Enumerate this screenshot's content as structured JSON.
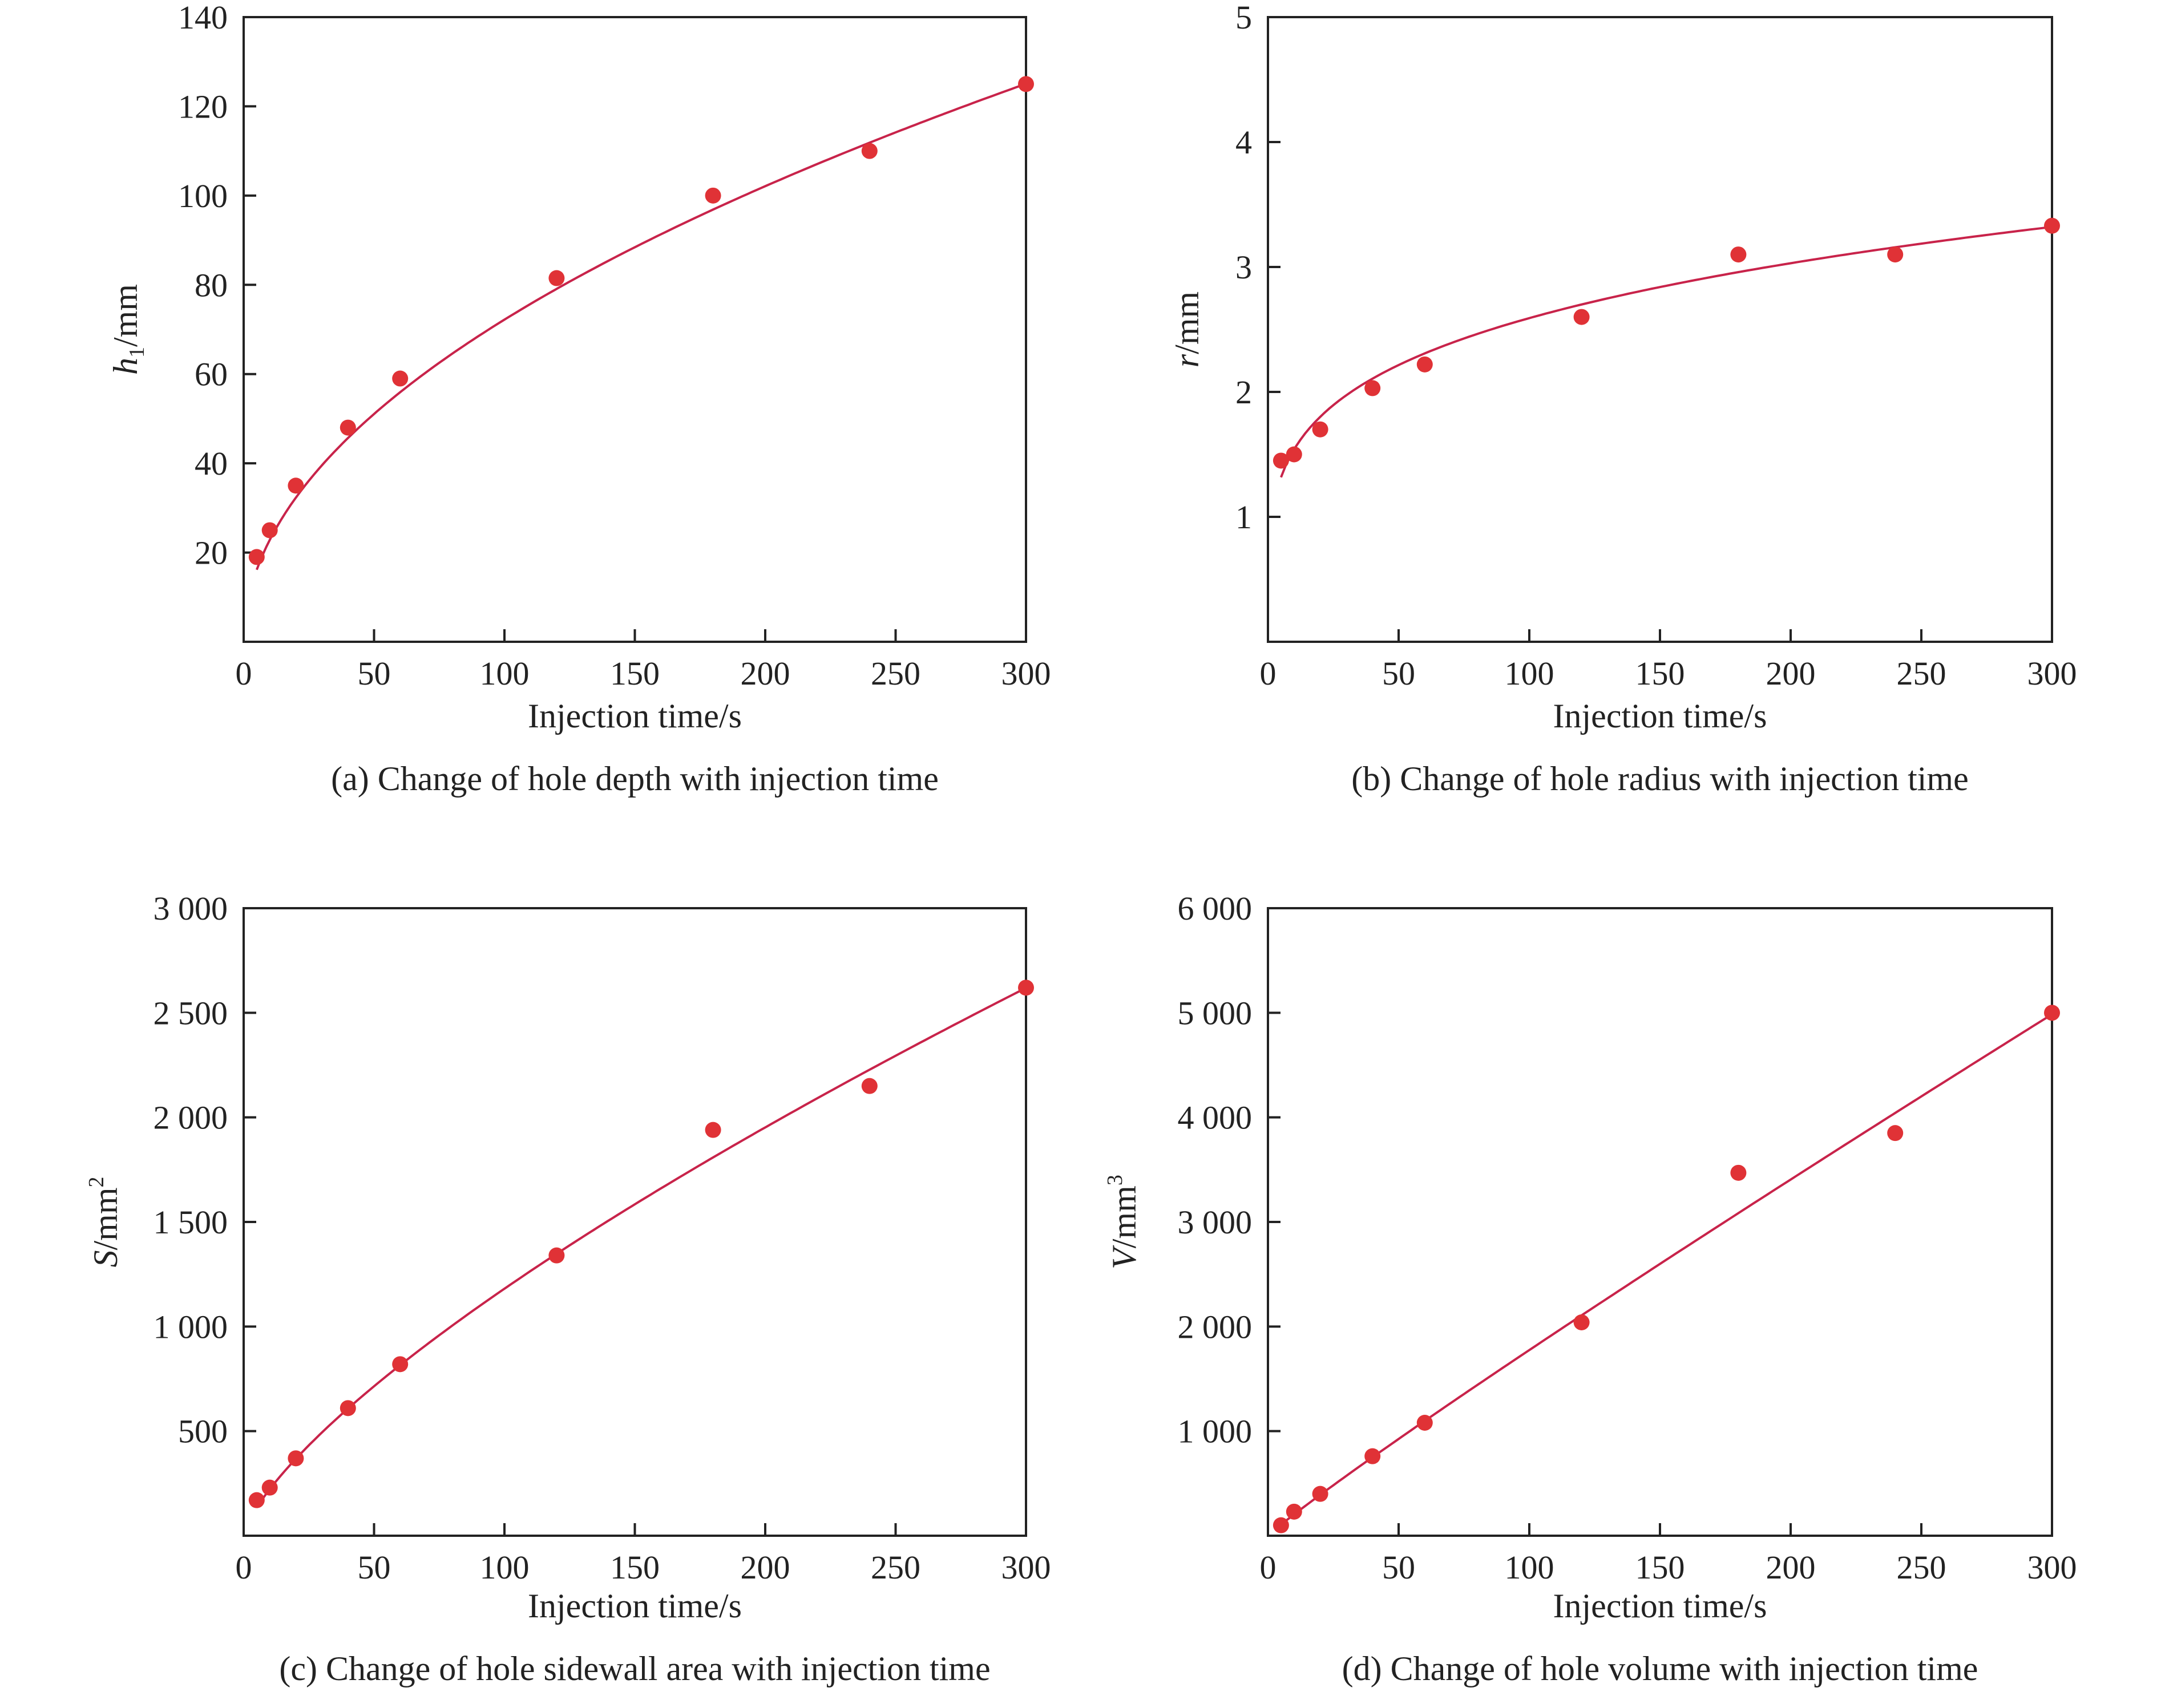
{
  "colors": {
    "axis": "#222222",
    "point": "#e03236",
    "curve": "#c8234a",
    "text": "#222222"
  },
  "chart_data": [
    {
      "id": "a",
      "type": "scatter",
      "caption": "(a) Change of hole depth with injection time",
      "xlabel": "Injection time/s",
      "ylabel_main": "h",
      "ylabel_sub": "1",
      "ylabel_sup": "",
      "ylabel_unit": "/mm",
      "xlim": [
        0,
        300
      ],
      "ylim": [
        0,
        140
      ],
      "xticks": [
        0,
        50,
        100,
        150,
        200,
        250,
        300
      ],
      "xtick_labels": [
        "0",
        "50",
        "100",
        "150",
        "200",
        "250",
        "300"
      ],
      "yticks": [
        20,
        40,
        60,
        80,
        100,
        120,
        140
      ],
      "ytick_labels": [
        "20",
        "40",
        "60",
        "80",
        "100",
        "120",
        "140"
      ],
      "x": [
        5,
        10,
        20,
        40,
        60,
        120,
        180,
        240,
        300
      ],
      "y": [
        19,
        25,
        35,
        48,
        59,
        81.5,
        100,
        110,
        125
      ],
      "fit": {
        "kind": "power",
        "a": 7.22,
        "b": 0.5,
        "x_from": 5,
        "x_to": 300
      },
      "grid": false
    },
    {
      "id": "b",
      "type": "scatter",
      "caption": "(b) Change of hole radius with injection time",
      "xlabel": "Injection time/s",
      "ylabel_main": "r",
      "ylabel_sub": "",
      "ylabel_sup": "",
      "ylabel_unit": "/mm",
      "xlim": [
        0,
        300
      ],
      "ylim": [
        0,
        5
      ],
      "xticks": [
        0,
        50,
        100,
        150,
        200,
        250,
        300
      ],
      "xtick_labels": [
        "0",
        "50",
        "100",
        "150",
        "200",
        "250",
        "300"
      ],
      "yticks": [
        1,
        2,
        3,
        4,
        5
      ],
      "ytick_labels": [
        "1",
        "2",
        "3",
        "4",
        "5"
      ],
      "x": [
        5,
        10,
        20,
        40,
        60,
        120,
        180,
        240,
        300
      ],
      "y": [
        1.45,
        1.5,
        1.7,
        2.03,
        2.22,
        2.6,
        3.1,
        3.1,
        3.33
      ],
      "fit": {
        "kind": "power",
        "a": 0.915,
        "b": 0.226,
        "x_from": 5,
        "x_to": 300
      },
      "grid": false
    },
    {
      "id": "c",
      "type": "scatter",
      "caption": "(c) Change of hole sidewall area with injection time",
      "xlabel": "Injection time/s",
      "ylabel_main": "S",
      "ylabel_sub": "",
      "ylabel_sup": "2",
      "ylabel_unit": "/mm",
      "xlim": [
        0,
        300
      ],
      "ylim": [
        0,
        3000
      ],
      "xticks": [
        0,
        50,
        100,
        150,
        200,
        250,
        300
      ],
      "xtick_labels": [
        "0",
        "50",
        "100",
        "150",
        "200",
        "250",
        "300"
      ],
      "yticks": [
        500,
        1000,
        1500,
        2000,
        2500,
        3000
      ],
      "ytick_labels": [
        "500",
        "1 000",
        "1 500",
        "2 000",
        "2 500",
        "3 000"
      ],
      "x": [
        5,
        10,
        20,
        40,
        60,
        120,
        180,
        240,
        300
      ],
      "y": [
        170,
        230,
        370,
        610,
        820,
        1340,
        1940,
        2150,
        2620
      ],
      "fit": {
        "kind": "power",
        "a": 41.9,
        "b": 0.725,
        "x_from": 5,
        "x_to": 300
      },
      "grid": false
    },
    {
      "id": "d",
      "type": "scatter",
      "caption": "(d) Change of hole volume with injection time",
      "xlabel": "Injection time/s",
      "ylabel_main": "V",
      "ylabel_sub": "",
      "ylabel_sup": "3",
      "ylabel_unit": "/mm",
      "xlim": [
        0,
        300
      ],
      "ylim": [
        0,
        6000
      ],
      "xticks": [
        0,
        50,
        100,
        150,
        200,
        250,
        300
      ],
      "xtick_labels": [
        "0",
        "50",
        "100",
        "150",
        "200",
        "250",
        "300"
      ],
      "yticks": [
        1000,
        2000,
        3000,
        4000,
        5000,
        6000
      ],
      "ytick_labels": [
        "1 000",
        "2 000",
        "3 000",
        "4 000",
        "5 000",
        "6 000"
      ],
      "x": [
        5,
        10,
        20,
        40,
        60,
        120,
        180,
        240,
        300
      ],
      "y": [
        100,
        230,
        400,
        760,
        1080,
        2040,
        3470,
        3850,
        5000
      ],
      "fit": {
        "kind": "power",
        "a": 23.4,
        "b": 0.94,
        "x_from": 5,
        "x_to": 300
      },
      "grid": false
    }
  ]
}
